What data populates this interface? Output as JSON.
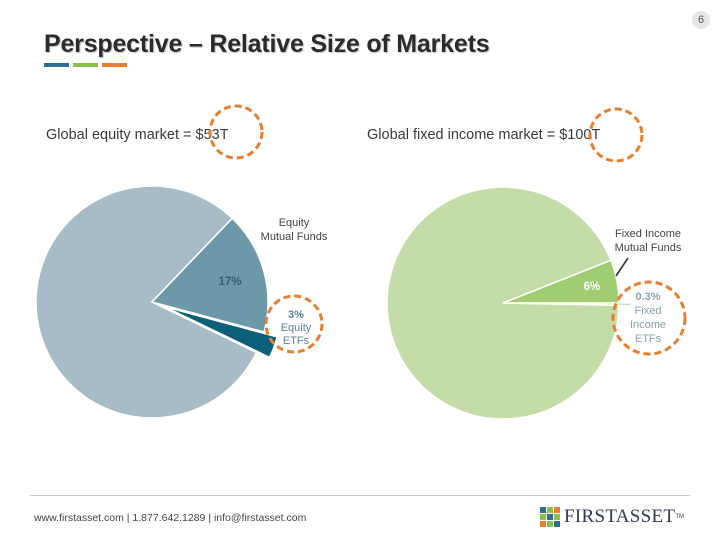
{
  "slide_number": "6",
  "title": "Perspective – Relative Size of Markets",
  "title_bar_colors": [
    "#2e6f8e",
    "#8cbf4b",
    "#e87e2e"
  ],
  "equity": {
    "label": "Global equity market = $53T"
  },
  "fixed_income": {
    "label": "Global fixed income market = $100T"
  },
  "chart_data": [
    {
      "type": "pie",
      "title": "Global equity market = $53T",
      "slices": [
        {
          "label": "",
          "value": 80,
          "color": "#a7bcc6",
          "data_label": ""
        },
        {
          "label": "Equity Mutual Funds",
          "value": 17,
          "color": "#6c98a9",
          "data_label": "17%"
        },
        {
          "label": "Equity ETFs",
          "value": 3,
          "color": "#0b5f78",
          "data_label": "3%"
        }
      ],
      "callouts": [
        {
          "lines": [
            "Equity",
            "Mutual Funds"
          ]
        },
        {
          "lines": [
            "3%",
            "Equity",
            "ETFs"
          ]
        }
      ]
    },
    {
      "type": "pie",
      "title": "Global fixed income market = $100T",
      "slices": [
        {
          "label": "",
          "value": 93.7,
          "color": "#c4dda8",
          "data_label": ""
        },
        {
          "label": "Fixed Income Mutual Funds",
          "value": 6,
          "color": "#a0cc72",
          "data_label": "6%"
        },
        {
          "label": "Fixed Income ETFs",
          "value": 0.3,
          "color": "#7fa33e",
          "data_label": "0.3%"
        }
      ],
      "callouts": [
        {
          "lines": [
            "Fixed Income",
            "Mutual Funds"
          ]
        },
        {
          "lines": [
            "0.3%",
            "Fixed",
            "Income",
            "ETFs"
          ]
        }
      ]
    }
  ],
  "highlight_color": "#e87e2e",
  "footer": {
    "contact": "www.firstasset.com  | 1.877.642.1289 | info@firstasset.com",
    "logo_text": "FIRSTASSET",
    "logo_tm": "TM",
    "logo_colors": [
      "#2e6f8e",
      "#8cbf4b",
      "#e87e2e",
      "#8cbf4b",
      "#2e6f8e",
      "#8cbf4b",
      "#e87e2e",
      "#8cbf4b",
      "#2e6f8e"
    ]
  }
}
